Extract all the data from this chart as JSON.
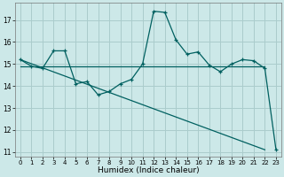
{
  "xlabel": "Humidex (Indice chaleur)",
  "background_color": "#cce8e8",
  "grid_color": "#aacccc",
  "line_color": "#006060",
  "xlim": [
    -0.5,
    23.5
  ],
  "ylim": [
    10.8,
    17.8
  ],
  "yticks": [
    11,
    12,
    13,
    14,
    15,
    16,
    17
  ],
  "xticks": [
    0,
    1,
    2,
    3,
    4,
    5,
    6,
    7,
    8,
    9,
    10,
    11,
    12,
    13,
    14,
    15,
    16,
    17,
    18,
    19,
    20,
    21,
    22,
    23
  ],
  "line1_x": [
    0,
    1,
    2,
    3,
    4,
    5,
    6,
    7,
    8,
    9,
    10,
    11,
    12,
    13,
    14,
    15,
    16,
    17,
    18,
    19,
    20,
    21,
    22,
    23
  ],
  "line1_y": [
    15.2,
    14.9,
    14.8,
    15.6,
    15.6,
    14.1,
    14.2,
    13.6,
    13.75,
    14.1,
    14.3,
    15.0,
    17.4,
    17.35,
    16.1,
    15.45,
    15.55,
    14.95,
    14.65,
    15.0,
    15.2,
    15.15,
    14.8,
    11.1
  ],
  "line2_x": [
    0,
    22
  ],
  "line2_y": [
    14.9,
    14.9
  ],
  "line3_x": [
    0,
    22
  ],
  "line3_y": [
    15.2,
    11.1
  ]
}
